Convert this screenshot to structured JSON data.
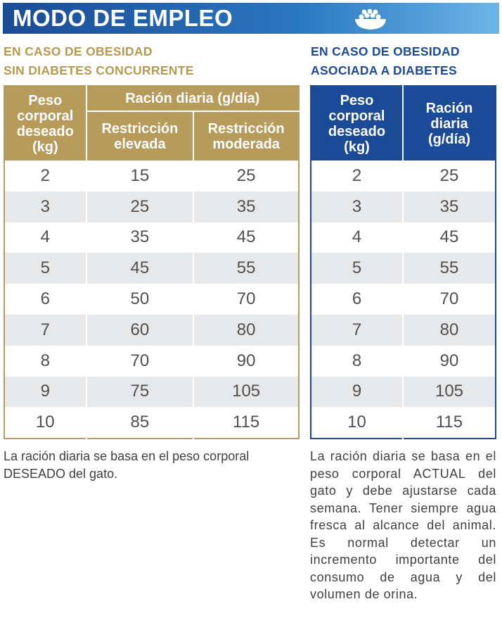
{
  "header": {
    "title": "MODO DE EMPLEO",
    "icon": "cat-food-bowl-icon"
  },
  "colors": {
    "gold": "#b79b5a",
    "navy": "#1b4b96",
    "row_alt": "#e7e8ea"
  },
  "left": {
    "subtitle_line1": "EN CASO DE OBESIDAD",
    "subtitle_line2": "SIN DIABETES CONCURRENTE",
    "headers": {
      "weight": [
        "Peso",
        "corporal",
        "deseado",
        "(kg)"
      ],
      "ration": "Ración diaria (g/día)",
      "high": [
        "Restricción",
        "elevada"
      ],
      "moderate": [
        "Restricción",
        "moderada"
      ]
    },
    "rows": [
      [
        "2",
        "15",
        "25"
      ],
      [
        "3",
        "25",
        "35"
      ],
      [
        "4",
        "35",
        "45"
      ],
      [
        "5",
        "45",
        "55"
      ],
      [
        "6",
        "50",
        "70"
      ],
      [
        "7",
        "60",
        "80"
      ],
      [
        "8",
        "70",
        "90"
      ],
      [
        "9",
        "75",
        "105"
      ],
      [
        "10",
        "85",
        "115"
      ]
    ],
    "note": "La ración diaria se basa en el peso corporal DESEADO del gato."
  },
  "right": {
    "subtitle_line1": "EN CASO DE OBESIDAD",
    "subtitle_line2": "ASOCIADA A DIABETES",
    "headers": {
      "weight": [
        "Peso",
        "corporal",
        "deseado",
        "(kg)"
      ],
      "ration": [
        "Ración",
        "diaria",
        "(g/día)"
      ]
    },
    "rows": [
      [
        "2",
        "25"
      ],
      [
        "3",
        "35"
      ],
      [
        "4",
        "45"
      ],
      [
        "5",
        "55"
      ],
      [
        "6",
        "70"
      ],
      [
        "7",
        "80"
      ],
      [
        "8",
        "90"
      ],
      [
        "9",
        "105"
      ],
      [
        "10",
        "115"
      ]
    ],
    "note": "La ración diaria se basa en el peso corporal ACTUAL del gato y debe ajustarse cada semana. Tener siempre agua fresca al alcance del animal. Es normal detectar un incremento importante del consumo de agua y del volumen de orina."
  }
}
